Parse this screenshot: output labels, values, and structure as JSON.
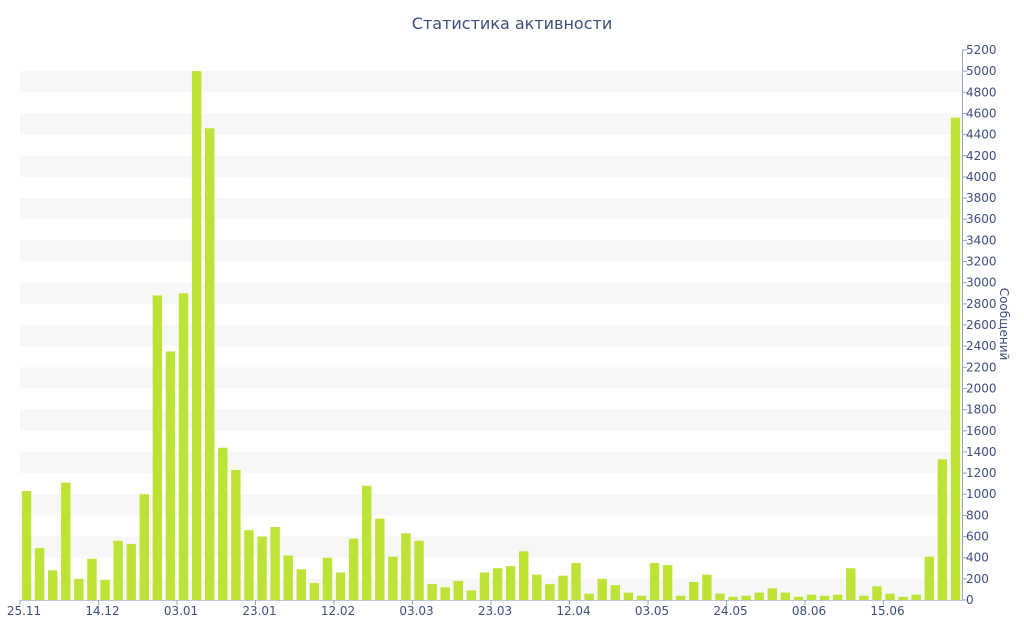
{
  "chart_data": {
    "type": "bar",
    "title": "Статистика активности",
    "xlabel": "",
    "ylabel": "Сообщений",
    "ylim": [
      0,
      5200
    ],
    "y_ticks": [
      0,
      200,
      400,
      600,
      800,
      1000,
      1200,
      1400,
      1600,
      1800,
      2000,
      2200,
      2400,
      2600,
      2800,
      3000,
      3200,
      3400,
      3600,
      3800,
      4000,
      4200,
      4400,
      4600,
      4800,
      5000,
      5200
    ],
    "y_axis_side": "right",
    "grid": "horizontal bands",
    "bar_color": "#bde337",
    "band_color": "#f7f7f7",
    "axis_color": "#3e4f7f",
    "x_tick_labels": [
      {
        "label": "25.11",
        "index": 0
      },
      {
        "label": "14.12",
        "index": 6
      },
      {
        "label": "03.01",
        "index": 12
      },
      {
        "label": "23.01",
        "index": 18
      },
      {
        "label": "12.02",
        "index": 24
      },
      {
        "label": "03.03",
        "index": 30
      },
      {
        "label": "23.03",
        "index": 36
      },
      {
        "label": "12.04",
        "index": 42
      },
      {
        "label": "03.05",
        "index": 48
      },
      {
        "label": "24.05",
        "index": 54
      },
      {
        "label": "08.06",
        "index": 60
      },
      {
        "label": "15.06",
        "index": 66
      }
    ],
    "values": [
      1030,
      490,
      280,
      1110,
      200,
      390,
      190,
      560,
      530,
      1000,
      2880,
      2350,
      2900,
      5000,
      4460,
      1440,
      1230,
      660,
      600,
      690,
      420,
      290,
      160,
      400,
      260,
      580,
      1080,
      770,
      410,
      630,
      560,
      150,
      120,
      180,
      90,
      260,
      300,
      320,
      460,
      240,
      150,
      230,
      350,
      60,
      200,
      140,
      70,
      40,
      350,
      330,
      40,
      170,
      240,
      60,
      30,
      40,
      70,
      110,
      70,
      30,
      50,
      40,
      50,
      300,
      40,
      130,
      60,
      30,
      50,
      410,
      1330,
      4560
    ]
  }
}
